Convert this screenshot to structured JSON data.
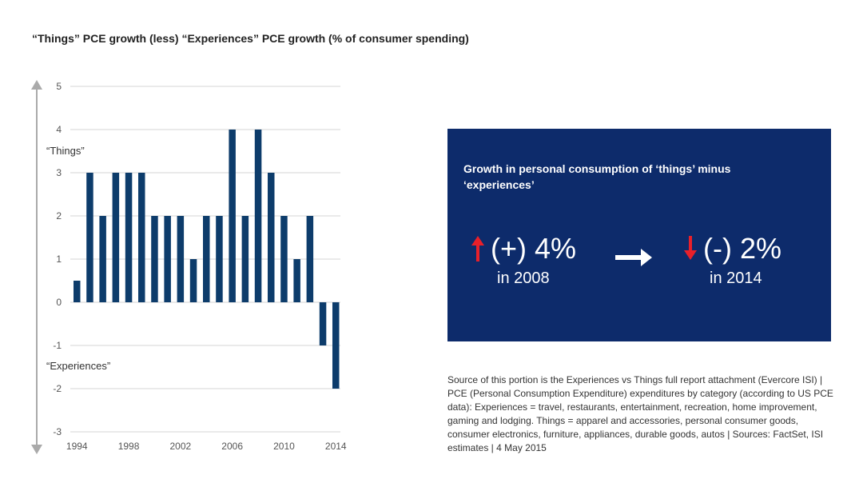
{
  "title": "“Things” PCE growth (less) “Experiences” PCE growth (% of consumer spending)",
  "chart_data": {
    "type": "bar",
    "x": [
      1994,
      1995,
      1996,
      1997,
      1998,
      1999,
      2000,
      2001,
      2002,
      2003,
      2004,
      2005,
      2006,
      2007,
      2008,
      2009,
      2010,
      2011,
      2012,
      2013,
      2014
    ],
    "values": [
      0.5,
      3,
      2,
      3,
      3,
      3,
      2,
      2,
      2,
      1,
      2,
      2,
      4,
      2,
      4,
      3,
      2,
      1,
      2,
      -1,
      -2
    ],
    "x_tick_labels": [
      "1994",
      "1998",
      "2002",
      "2006",
      "2010",
      "2014"
    ],
    "y_tick_labels": [
      "5",
      "4",
      "3",
      "2",
      "1",
      "0",
      "-1",
      "-2",
      "-3"
    ],
    "ylim": [
      -3,
      5
    ],
    "grid": true,
    "bar_color": "#0d3c6b",
    "annotations": {
      "positive_label": "“Things”",
      "negative_label": "“Experiences”"
    }
  },
  "callout": {
    "heading": "Growth in personal consumption of ‘things’ minus ‘experiences’",
    "left_value": "(+) 4%",
    "left_year": "in 2008",
    "right_value": "(-) 2%",
    "right_year": "in 2014",
    "background_color": "#0d2b6b",
    "accent_color": "#e8202a"
  },
  "source": "Source of this portion is the Experiences vs Things full report attachment (Evercore ISI) | PCE (Personal Consumption Expenditure) expenditures by category (according to US PCE data): Experiences = travel, restaurants, entertainment, recreation, home improvement, gaming and lodging. Things = apparel and accessories, personal consumer goods, consumer electronics, furniture, appliances, durable goods, autos | Sources: FactSet, ISI estimates | 4 May 2015"
}
